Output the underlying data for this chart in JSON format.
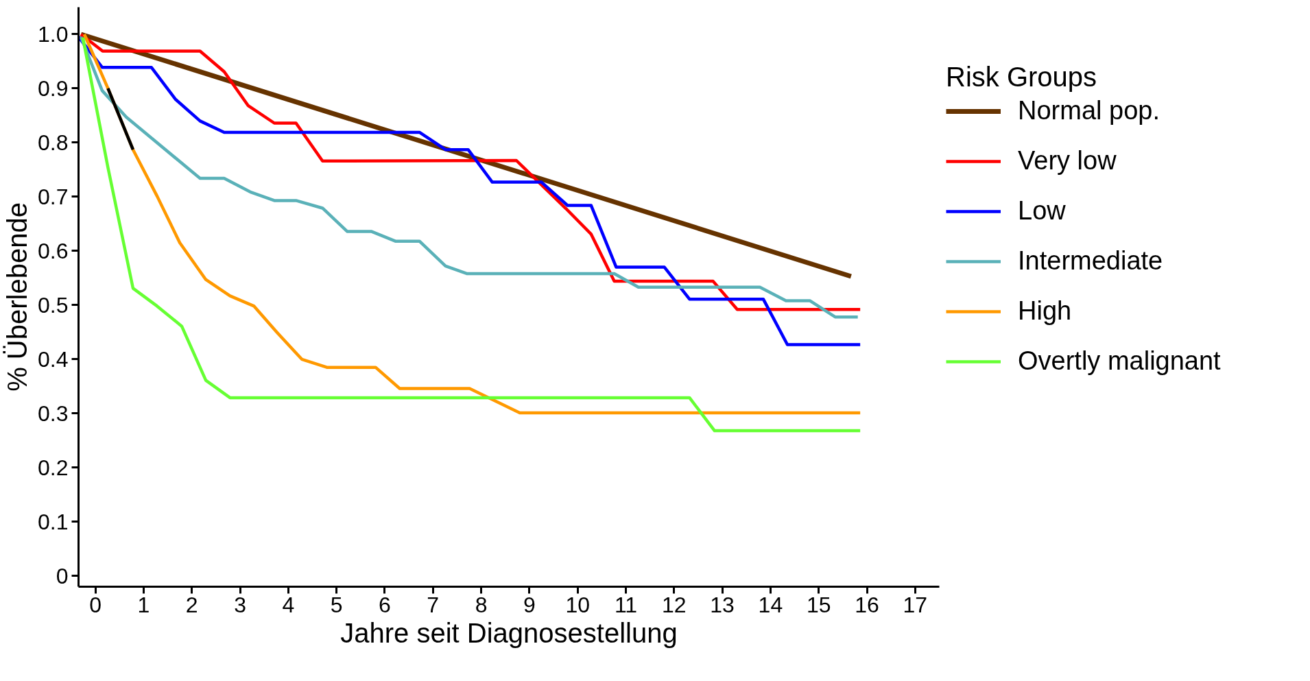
{
  "chart_data": {
    "type": "line",
    "xlabel": "Jahre seit Diagnosestellung",
    "ylabel": "% Überlebende",
    "legend_title": "Risk Groups",
    "legend": "right",
    "grid": false,
    "marker": "none",
    "line_style": "solid",
    "xlim": [
      -0.35,
      17.5
    ],
    "ylim": [
      -0.02,
      1.05
    ],
    "xticks": [
      0,
      1,
      2,
      3,
      4,
      5,
      6,
      7,
      8,
      9,
      10,
      11,
      12,
      13,
      14,
      15,
      16,
      17
    ],
    "yticks": [
      0,
      0.1,
      0.2,
      0.3,
      0.4,
      0.5,
      0.6,
      0.7,
      0.8,
      0.9,
      {
        "value": 1,
        "label": "1.0"
      }
    ],
    "series": [
      {
        "name": "Normal pop.",
        "color": "#663300",
        "x": [
          -0.3,
          15.67
        ],
        "values": [
          1.0,
          0.553
        ]
      },
      {
        "name": "Very low",
        "color": "#ff0000",
        "x": [
          -0.3,
          0.15,
          2.17,
          2.67,
          3.17,
          3.71,
          4.16,
          4.71,
          8.73,
          9.76,
          10.28,
          10.76,
          12.81,
          13.31,
          15.86
        ],
        "values": [
          1.0,
          0.969,
          0.969,
          0.931,
          0.868,
          0.836,
          0.836,
          0.766,
          0.767,
          0.678,
          0.631,
          0.544,
          0.544,
          0.492,
          0.492
        ]
      },
      {
        "name": "Low",
        "color": "#0000ff",
        "x": [
          -0.35,
          0.14,
          1.16,
          1.66,
          2.17,
          2.67,
          6.72,
          7.26,
          7.73,
          8.23,
          9.25,
          9.79,
          10.28,
          10.8,
          11.8,
          12.32,
          13.85,
          14.35,
          15.86
        ],
        "values": [
          0.995,
          0.939,
          0.939,
          0.88,
          0.84,
          0.819,
          0.819,
          0.787,
          0.787,
          0.727,
          0.727,
          0.684,
          0.684,
          0.57,
          0.57,
          0.511,
          0.511,
          0.427,
          0.427
        ]
      },
      {
        "name": "Intermediate",
        "color": "#5ab1b8",
        "x": [
          -0.3,
          0.14,
          0.64,
          2.17,
          2.67,
          3.21,
          3.71,
          4.16,
          4.71,
          5.22,
          5.72,
          6.22,
          6.72,
          7.26,
          7.71,
          10.76,
          11.26,
          13.78,
          14.32,
          14.82,
          15.34,
          15.81
        ],
        "values": [
          0.995,
          0.896,
          0.847,
          0.734,
          0.734,
          0.709,
          0.693,
          0.693,
          0.679,
          0.636,
          0.636,
          0.618,
          0.618,
          0.572,
          0.558,
          0.558,
          0.533,
          0.533,
          0.508,
          0.508,
          0.478,
          0.478
        ]
      },
      {
        "name": "High",
        "color": "#ff9900",
        "x": [
          -0.23,
          0.26,
          0.78,
          1.28,
          1.75,
          2.29,
          2.79,
          3.29,
          3.76,
          4.28,
          4.8,
          5.81,
          6.31,
          7.76,
          8.8,
          15.86
        ],
        "values": [
          1.0,
          0.9,
          0.787,
          0.701,
          0.615,
          0.547,
          0.517,
          0.498,
          0.45,
          0.4,
          0.385,
          0.385,
          0.346,
          0.346,
          0.301,
          0.301
        ]
      },
      {
        "color": "#000000",
        "x": [
          0.26,
          0.78
        ],
        "values": [
          0.9,
          0.787
        ]
      },
      {
        "name": "Overtly malignant",
        "color": "#66ff33",
        "x": [
          -0.26,
          0.26,
          0.78,
          1.28,
          1.79,
          2.29,
          2.79,
          12.32,
          12.84,
          15.86
        ],
        "values": [
          0.994,
          0.754,
          0.531,
          0.498,
          0.461,
          0.361,
          0.329,
          0.329,
          0.268,
          0.268
        ]
      }
    ]
  }
}
